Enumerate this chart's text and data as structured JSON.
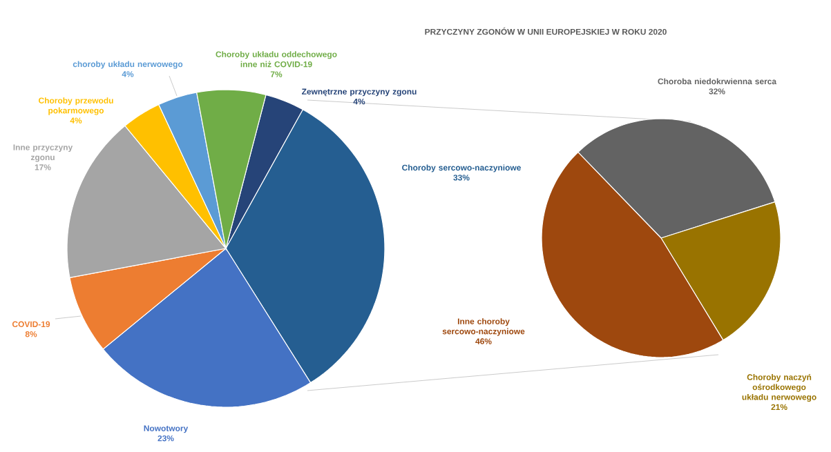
{
  "chart_data": [
    {
      "type": "pie",
      "title": "PRZYCZYNY ZGONÓW W UNII EUROPEJSKIEJ W ROKU 2020",
      "categories": [
        "Zewnętrzne przyczyny zgonu",
        "Choroby sercowo-naczyniowe",
        "Nowotwory",
        "COVID-19",
        "Inne przyczyny zgonu",
        "Choroby przewodu pokarmowego",
        "choroby układu nerwowego",
        "Choroby układu oddechowego inne niż COVID-19"
      ],
      "values": [
        4,
        33,
        23,
        8,
        17,
        4,
        4,
        7
      ],
      "value_labels": [
        "4%",
        "33%",
        "23%",
        "8%",
        "17%",
        "4%",
        "4%",
        "7%"
      ],
      "colors": [
        "#264478",
        "#255e91",
        "#4472c4",
        "#ed7d31",
        "#a5a5a5",
        "#ffc000",
        "#5b9bd5",
        "#70ad47"
      ]
    },
    {
      "type": "pie",
      "categories": [
        "Choroba niedokrwienna serca",
        "Choroby naczyń ośrodkowego układu nerwowego",
        "Inne choroby sercowo-naczyniowe"
      ],
      "values": [
        32,
        21,
        46
      ],
      "value_labels": [
        "32%",
        "21%",
        "46%"
      ],
      "colors": [
        "#636363",
        "#997300",
        "#9e480e"
      ]
    }
  ]
}
